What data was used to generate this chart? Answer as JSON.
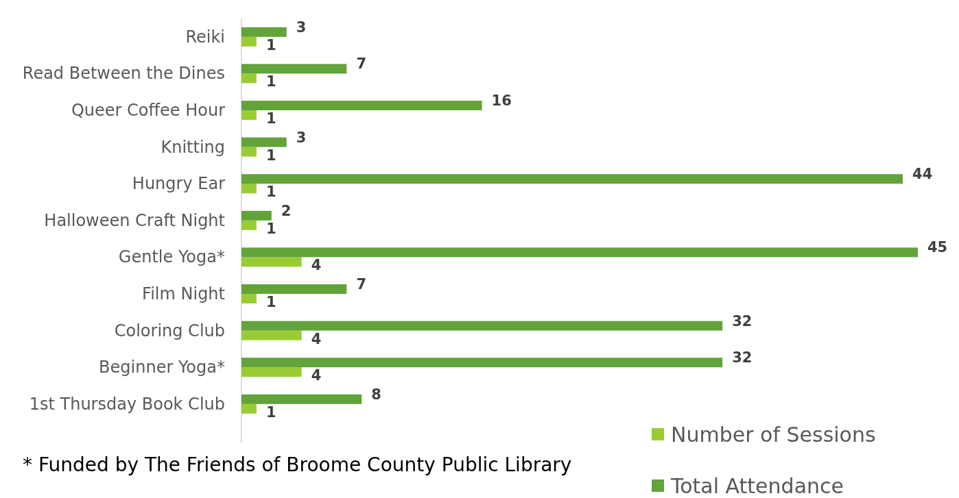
{
  "chart_data": {
    "type": "bar",
    "orientation": "horizontal",
    "categories": [
      "Reiki",
      "Read Between the Dines",
      "Queer Coffee Hour",
      "Knitting",
      "Hungry Ear",
      "Halloween Craft Night",
      "Gentle Yoga*",
      "Film Night",
      "Coloring Club",
      "Beginner Yoga*",
      "1st Thursday Book Club"
    ],
    "series": [
      {
        "name": "Number of Sessions",
        "color": "#99cc33",
        "values": [
          1,
          1,
          1,
          1,
          1,
          1,
          4,
          1,
          4,
          4,
          1
        ]
      },
      {
        "name": "Total Attendance",
        "color": "#62a33a",
        "values": [
          3,
          7,
          16,
          3,
          44,
          2,
          45,
          7,
          32,
          32,
          8
        ]
      }
    ],
    "data_labels": true,
    "legend": "bottom right",
    "annotations": [
      "* Funded by The Friends of Broome County Public Library"
    ]
  }
}
